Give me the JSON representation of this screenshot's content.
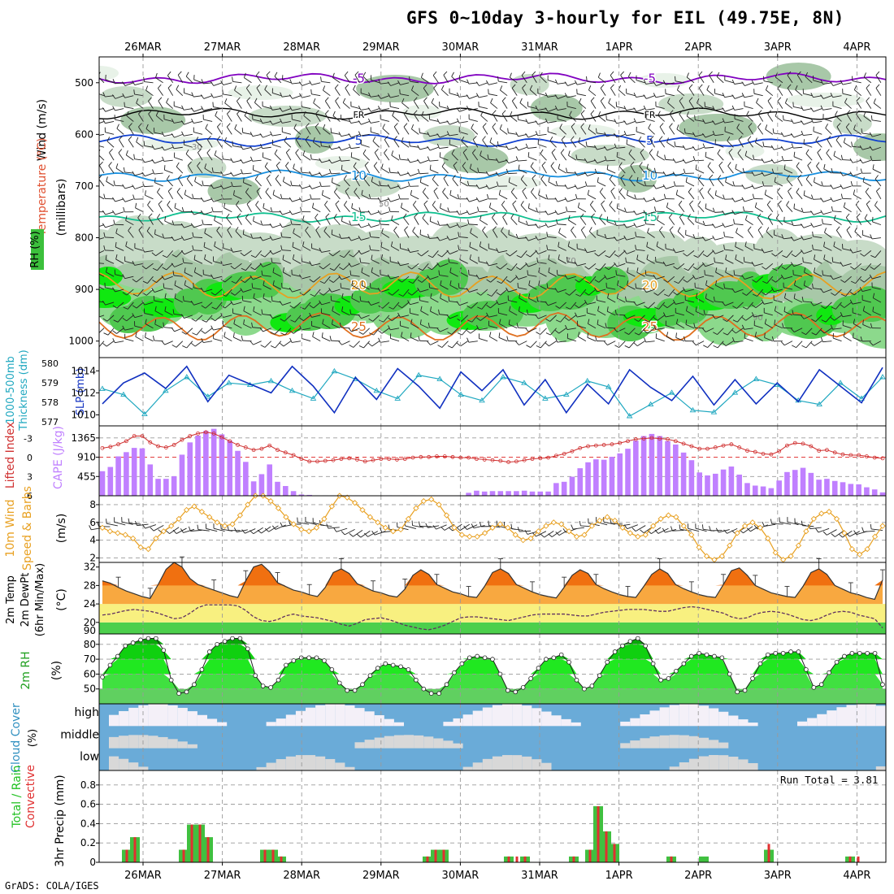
{
  "title": "GFS 0~10day 3-hourly for EIL (49.75E, 8N)",
  "credit": "GrADS: COLA/IGES",
  "run_total_label": "Run Total = 3.81",
  "dates": [
    "26MAR",
    "27MAR",
    "28MAR",
    "29MAR",
    "30MAR",
    "31MAR",
    "1APR",
    "2APR",
    "3APR",
    "4APR"
  ],
  "chart_data": [
    {
      "panel": "upper-air",
      "type": "heatmap",
      "ylabel": "(millibars)",
      "side_labels": [
        "Wind (m/s)",
        "Temperature (°C)",
        "RH (%)"
      ],
      "yticks": [
        500,
        600,
        700,
        800,
        900,
        1000
      ],
      "ylim": [
        1000,
        450
      ],
      "rh_contour_labels": [
        "30",
        "50",
        "70",
        "90"
      ],
      "temp_contours": [
        {
          "label": "-5",
          "level": 492,
          "color": "#8000c0"
        },
        {
          "label": "FR",
          "level": 560,
          "color": "#000000"
        },
        {
          "label": "5",
          "level": 612,
          "color": "#1040d0"
        },
        {
          "label": "10",
          "level": 680,
          "color": "#1890e0"
        },
        {
          "label": "15",
          "level": 760,
          "color": "#10c090"
        },
        {
          "label": "20",
          "level": 892,
          "color": "#e8a020"
        },
        {
          "label": "25",
          "level": 972,
          "color": "#e07020"
        }
      ]
    },
    {
      "panel": "thickness-slp",
      "type": "line",
      "left_labels": [
        "1000-500mb",
        "Thickness (dm)"
      ],
      "right_label": "SLP (mb)",
      "thickness_ticks": [
        577,
        578,
        579,
        580
      ],
      "slp_ticks": [
        1010,
        1012,
        1014
      ],
      "series": [
        {
          "name": "SLP (mb)",
          "color": "#1030c0",
          "values": [
            1011.0,
            1012.9,
            1013.8,
            1012.4,
            1014.4,
            1011.2,
            1013.6,
            1012.8,
            1012.0,
            1014.4,
            1012.6,
            1010.2,
            1013.4,
            1011.4,
            1014.2,
            1012.6,
            1010.6,
            1013.9,
            1012.2,
            1014.1,
            1010.9,
            1013.2,
            1010.2,
            1012.8,
            1011.0,
            1014.1,
            1012.5,
            1011.3,
            1013.5,
            1010.9,
            1013.2,
            1011.0,
            1012.9,
            1011.2,
            1014.1,
            1012.6,
            1011.1,
            1014.3
          ]
        },
        {
          "name": "1000-500mb Thickness (dm)",
          "color": "#20a8c0",
          "values": [
            578.7,
            578.4,
            577.4,
            578.6,
            579.3,
            578.3,
            579.0,
            578.9,
            579.1,
            578.6,
            578.2,
            579.6,
            579.2,
            578.6,
            578.2,
            579.4,
            579.2,
            578.4,
            578.1,
            579.3,
            579.0,
            578.2,
            578.4,
            579.1,
            578.8,
            577.3,
            577.9,
            578.5,
            577.6,
            577.5,
            578.5,
            579.2,
            578.9,
            578.1,
            577.9,
            579.0,
            578.2,
            579.3
          ]
        }
      ]
    },
    {
      "panel": "cape-li",
      "type": "bar",
      "left_labels": [
        "Lifted Index",
        "CAPE (J/kg)"
      ],
      "li_ticks": [
        -3,
        0,
        3,
        6
      ],
      "cape_ticks": [
        455,
        910,
        1365
      ],
      "cape_color": "#c080ff",
      "li_color": "#d03030",
      "series": [
        {
          "name": "CAPE (J/kg)",
          "values": [
            580,
            680,
            930,
            1030,
            1130,
            1120,
            740,
            400,
            400,
            460,
            970,
            1260,
            1420,
            1530,
            1580,
            1450,
            1300,
            1060,
            800,
            340,
            510,
            740,
            330,
            230,
            110,
            30,
            20,
            10,
            10,
            10,
            10,
            10,
            10,
            10,
            0,
            0,
            10,
            0,
            10,
            10,
            0,
            0,
            0,
            0,
            0,
            10,
            70,
            120,
            100,
            110,
            110,
            110,
            110,
            120,
            100,
            100,
            100,
            300,
            330,
            450,
            650,
            790,
            860,
            850,
            920,
            1000,
            1110,
            1300,
            1410,
            1460,
            1410,
            1290,
            1210,
            1020,
            840,
            550,
            480,
            520,
            620,
            690,
            500,
            300,
            240,
            220,
            180,
            360,
            560,
            610,
            660,
            540,
            380,
            400,
            350,
            320,
            280,
            270,
            200,
            150,
            80
          ]
        },
        {
          "name": "Lifted Index",
          "values": [
            -1.5,
            -1.7,
            -2.1,
            -2.6,
            -3.4,
            -3.4,
            -2.4,
            -1.8,
            -1.6,
            -2.0,
            -2.8,
            -3.4,
            -3.8,
            -4.0,
            -3.8,
            -3.2,
            -2.6,
            -2.0,
            -1.6,
            -1.2,
            -1.4,
            -1.9,
            -1.2,
            -0.8,
            -0.4,
            0.2,
            0.6,
            0.6,
            0.5,
            0.4,
            0.2,
            0.1,
            0.3,
            0.6,
            0.4,
            0.2,
            0.2,
            0.3,
            0.2,
            0.0,
            -0.1,
            -0.1,
            -0.2,
            -0.2,
            -0.1,
            0.0,
            0.0,
            0.2,
            0.3,
            0.4,
            0.5,
            0.7,
            0.6,
            0.4,
            0.2,
            0.1,
            0.0,
            -0.3,
            -0.6,
            -1.0,
            -1.5,
            -1.8,
            -1.9,
            -2.0,
            -2.1,
            -2.3,
            -2.6,
            -2.9,
            -3.0,
            -3.1,
            -3.0,
            -2.9,
            -2.6,
            -2.2,
            -1.8,
            -1.4,
            -1.4,
            -1.6,
            -1.9,
            -2.1,
            -1.6,
            -1.1,
            -0.9,
            -0.6,
            -0.5,
            -1.0,
            -1.9,
            -2.3,
            -2.2,
            -1.8,
            -1.1,
            -1.2,
            -0.8,
            -0.5,
            -0.4,
            -0.4,
            -0.2,
            0.0,
            0.1
          ]
        }
      ]
    },
    {
      "panel": "wind10m",
      "type": "line",
      "left_labels": [
        "10m Wind",
        "Speed & Barbs"
      ],
      "unit": "(m/s)",
      "yticks": [
        2,
        4,
        6,
        8
      ],
      "ylim": [
        1.5,
        9
      ],
      "series": [
        {
          "name": "10m Wind Speed",
          "color": "#e8a020",
          "values": [
            5.4,
            5.0,
            4.8,
            4.6,
            4.2,
            3.2,
            3.0,
            4.2,
            5.0,
            5.6,
            6.4,
            7.4,
            7.8,
            7.2,
            6.6,
            6.0,
            5.6,
            5.8,
            6.8,
            8.0,
            9.0,
            9.0,
            8.4,
            7.6,
            6.6,
            5.8,
            5.2,
            5.0,
            5.4,
            6.4,
            7.8,
            9.0,
            8.8,
            8.2,
            7.4,
            6.6,
            6.0,
            5.4,
            5.0,
            5.2,
            6.4,
            7.6,
            8.4,
            8.6,
            8.0,
            6.8,
            5.4,
            4.6,
            4.4,
            4.4,
            4.8,
            5.4,
            5.8,
            5.4,
            4.6,
            4.0,
            4.2,
            5.0,
            5.6,
            6.0,
            5.8,
            5.0,
            4.4,
            4.6,
            5.6,
            6.2,
            6.6,
            6.2,
            5.4,
            4.8,
            4.4,
            4.6,
            5.6,
            6.4,
            6.8,
            6.6,
            5.6,
            4.6,
            3.2,
            2.2,
            1.8,
            2.2,
            3.4,
            4.8,
            5.6,
            6.0,
            5.4,
            4.2,
            2.6,
            1.8,
            2.2,
            3.4,
            5.0,
            6.4,
            7.0,
            7.2,
            6.4,
            4.8,
            3.0,
            2.4,
            3.0,
            4.4,
            5.6
          ]
        }
      ]
    },
    {
      "panel": "temp2m",
      "type": "area",
      "left_labels": [
        "2m Temp",
        "2m DewPt",
        "(6hr Min/Max)"
      ],
      "unit": "(°C)",
      "yticks": [
        20,
        24,
        28,
        32
      ],
      "bottom_tick_label": "90",
      "ylim": [
        17.5,
        33
      ],
      "series": [
        {
          "name": "2m Temp",
          "values": [
            29.0,
            28.5,
            27.6,
            26.8,
            26.2,
            25.6,
            25.2,
            28.2,
            31.5,
            33.0,
            32.0,
            29.5,
            28.2,
            27.6,
            27.0,
            26.4,
            25.8,
            25.4,
            29.0,
            32.0,
            32.6,
            31.0,
            28.6,
            27.8,
            27.0,
            26.6,
            26.0,
            25.6,
            27.6,
            30.8,
            31.6,
            30.6,
            28.4,
            27.6,
            26.8,
            26.4,
            25.8,
            25.5,
            27.2,
            30.2,
            31.4,
            30.4,
            28.2,
            27.4,
            26.6,
            26.2,
            25.6,
            25.4,
            27.8,
            30.8,
            31.6,
            30.6,
            28.2,
            27.4,
            26.6,
            26.0,
            25.6,
            25.3,
            27.6,
            30.2,
            31.4,
            30.6,
            28.2,
            27.3,
            26.6,
            26.0,
            25.6,
            25.4,
            27.8,
            30.4,
            31.6,
            30.6,
            28.2,
            27.3,
            26.6,
            26.0,
            25.6,
            25.4,
            28.2,
            31.2,
            31.8,
            30.2,
            28.0,
            27.2,
            26.4,
            26.0,
            25.6,
            25.4,
            27.8,
            30.8,
            31.6,
            30.4,
            28.0,
            27.2,
            26.4,
            26.0,
            25.4,
            25.0,
            29.2
          ]
        },
        {
          "name": "2m DewPt",
          "values": [
            21.6,
            21.8,
            22.2,
            22.6,
            22.8,
            22.6,
            22.4,
            22.0,
            21.4,
            20.8,
            21.0,
            22.0,
            23.2,
            23.8,
            23.8,
            23.8,
            23.8,
            23.6,
            22.6,
            21.2,
            20.4,
            20.2,
            20.6,
            21.4,
            21.8,
            21.4,
            21.2,
            21.0,
            20.6,
            20.2,
            19.6,
            19.2,
            19.8,
            20.6,
            20.8,
            21.0,
            20.6,
            20.0,
            19.4,
            19.0,
            18.6,
            18.4,
            18.8,
            19.4,
            20.2,
            21.0,
            21.2,
            21.2,
            21.0,
            20.8,
            20.6,
            20.4,
            20.8,
            21.2,
            21.6,
            21.8,
            21.8,
            21.8,
            21.8,
            21.6,
            21.4,
            21.4,
            21.8,
            22.2,
            22.4,
            22.6,
            22.8,
            22.8,
            22.8,
            22.6,
            22.4,
            22.4,
            22.8,
            23.2,
            23.4,
            23.2,
            22.8,
            22.4,
            22.0,
            21.2,
            20.8,
            21.0,
            21.8,
            22.2,
            22.4,
            22.2,
            21.8,
            21.2,
            20.6,
            20.4,
            20.8,
            21.6,
            22.2,
            22.4,
            22.2,
            21.6,
            21.2,
            20.8,
            18.8
          ]
        }
      ]
    },
    {
      "panel": "rh2m",
      "type": "area",
      "left_labels": [
        "2m RH"
      ],
      "unit": "(%)",
      "yticks": [
        50,
        60,
        70,
        80
      ],
      "ylim": [
        40,
        87
      ],
      "series": [
        {
          "name": "2m RH",
          "values": [
            58,
            66,
            72,
            79,
            81,
            83,
            84,
            84,
            76,
            56,
            47,
            48,
            53,
            63,
            75,
            80,
            82,
            84,
            84,
            77,
            59,
            52,
            51,
            56,
            66,
            69,
            71,
            71,
            71,
            69,
            63,
            54,
            49,
            49,
            53,
            59,
            64,
            67,
            66,
            65,
            63,
            56,
            50,
            47,
            47,
            53,
            61,
            67,
            71,
            72,
            71,
            70,
            60,
            49,
            48,
            51,
            57,
            64,
            70,
            71,
            73,
            68,
            56,
            50,
            52,
            59,
            68,
            75,
            79,
            82,
            84,
            79,
            67,
            56,
            57,
            62,
            67,
            72,
            74,
            73,
            72,
            71,
            60,
            48,
            49,
            57,
            67,
            73,
            74,
            74,
            75,
            75,
            63,
            51,
            53,
            61,
            68,
            72,
            74,
            74,
            74,
            74,
            53
          ]
        }
      ]
    },
    {
      "panel": "cloud-cover",
      "type": "heatmap",
      "left_labels": [
        "Cloud Cover",
        "(%)"
      ],
      "rows": [
        "high",
        "middle",
        "low"
      ]
    },
    {
      "panel": "precip",
      "type": "bar",
      "left_labels": [
        "Total / Rain",
        "Convective"
      ],
      "ylabel": "3hr Precip (mm)",
      "yticks": [
        0,
        0.2,
        0.4,
        0.6,
        0.8
      ],
      "ylim": [
        0,
        0.95
      ],
      "total_color": "#40c040",
      "convective_color": "#e03030",
      "series": [
        {
          "name": "Total / Rain",
          "values": [
            0,
            0,
            0,
            0.13,
            0.26,
            0,
            0,
            0,
            0,
            0,
            0.13,
            0.39,
            0.39,
            0.26,
            0,
            0,
            0,
            0,
            0,
            0,
            0.13,
            0.13,
            0.06,
            0,
            0,
            0,
            0,
            0,
            0,
            0,
            0,
            0,
            0,
            0,
            0,
            0,
            0,
            0,
            0,
            0,
            0.06,
            0.13,
            0.13,
            0,
            0,
            0,
            0,
            0,
            0,
            0,
            0.06,
            0,
            0.06,
            0,
            0,
            0,
            0,
            0,
            0.06,
            0,
            0.13,
            0.58,
            0.32,
            0.19,
            0,
            0,
            0,
            0,
            0,
            0,
            0.06,
            0,
            0,
            0,
            0.06,
            0,
            0,
            0,
            0,
            0,
            0,
            0,
            0.13,
            0,
            0,
            0,
            0,
            0,
            0,
            0,
            0,
            0,
            0.06,
            0,
            0,
            0,
            0
          ]
        },
        {
          "name": "Convective",
          "values": [
            0,
            0,
            0,
            0.13,
            0.26,
            0,
            0,
            0,
            0,
            0,
            0.13,
            0.39,
            0.39,
            0.26,
            0,
            0,
            0,
            0,
            0,
            0,
            0.13,
            0.13,
            0.06,
            0,
            0,
            0,
            0,
            0,
            0,
            0,
            0,
            0,
            0,
            0,
            0,
            0,
            0,
            0,
            0,
            0,
            0.06,
            0.13,
            0.13,
            0,
            0,
            0,
            0,
            0,
            0,
            0,
            0.06,
            0.06,
            0.06,
            0,
            0,
            0,
            0,
            0,
            0.06,
            0,
            0.13,
            0.58,
            0.32,
            0.19,
            0,
            0,
            0,
            0,
            0,
            0,
            0.06,
            0,
            0,
            0,
            0,
            0,
            0,
            0,
            0,
            0,
            0,
            0,
            0.19,
            0,
            0,
            0,
            0,
            0,
            0,
            0,
            0,
            0,
            0.06,
            0.06,
            0,
            0,
            0
          ]
        }
      ]
    }
  ]
}
